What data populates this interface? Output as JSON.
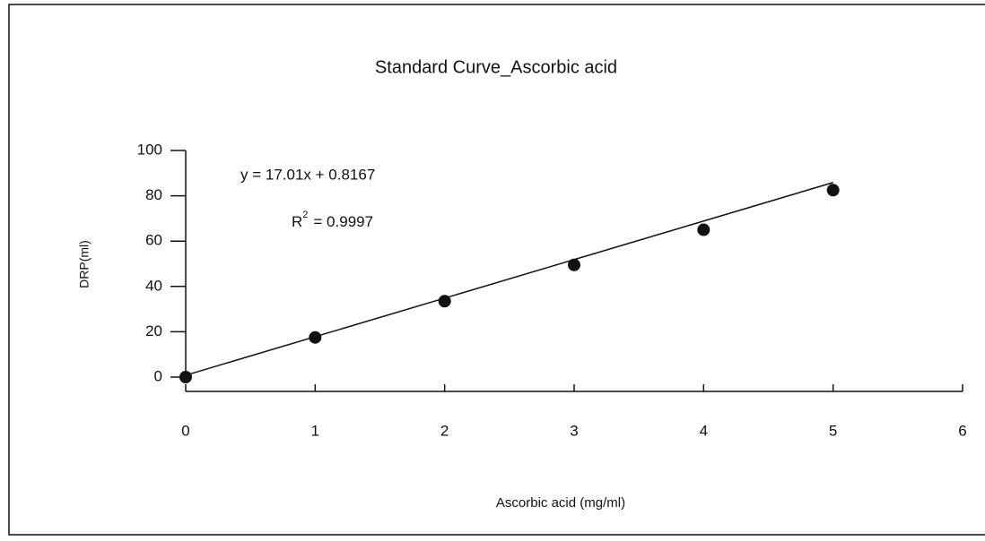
{
  "chart_data": {
    "type": "scatter",
    "title": "Standard Curve_Ascorbic acid",
    "x_label": "Ascorbic acid (mg/ml)",
    "y_label": "DRP(ml)",
    "x": [
      0,
      1,
      2,
      3,
      4,
      5
    ],
    "values": [
      0,
      17.5,
      33.5,
      49.5,
      65,
      82.5
    ],
    "color": "#111111",
    "xlim": [
      0,
      6
    ],
    "xticks": [
      0,
      1,
      2,
      3,
      4,
      5,
      6
    ],
    "ylim": [
      0,
      100
    ],
    "yticks": [
      0,
      20,
      40,
      60,
      80,
      100
    ],
    "trendline": {
      "slope": 17.01,
      "intercept": 0.8167
    },
    "equation": "y = 17.01x + 0.8167",
    "r_squared": {
      "symbol": "R",
      "superscript": "2",
      "text": "= 0.9997"
    }
  }
}
